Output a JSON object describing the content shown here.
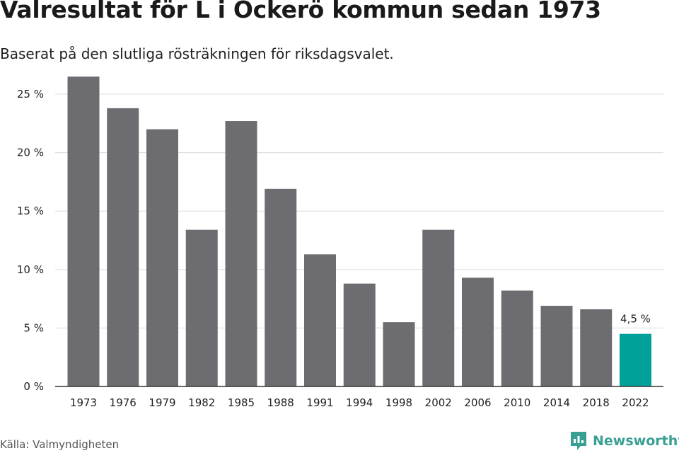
{
  "header": {
    "title": "Valresultat för L i Ockerö kommun sedan 1973",
    "subtitle": "Baserat på den slutliga rösträkningen för riksdagsvalet."
  },
  "footer": {
    "source": "Källa: Valmyndigheten",
    "brand": "Newsworthy",
    "brand_icon": "newsworthy-logo-icon",
    "brand_color": "#3a9f93"
  },
  "chart_data": {
    "type": "bar",
    "title": "Valresultat för L i Ockerö kommun sedan 1973",
    "subtitle": "Baserat på den slutliga rösträkningen för riksdagsvalet.",
    "xlabel": "",
    "ylabel": "",
    "categories": [
      "1973",
      "1976",
      "1979",
      "1982",
      "1985",
      "1988",
      "1991",
      "1994",
      "1998",
      "2002",
      "2006",
      "2010",
      "2014",
      "2018",
      "2022"
    ],
    "values": [
      26.5,
      23.8,
      22.0,
      13.4,
      22.7,
      16.9,
      11.3,
      8.8,
      5.5,
      13.4,
      9.3,
      8.2,
      6.9,
      6.6,
      4.5
    ],
    "ylim": [
      0,
      27
    ],
    "yticks": [
      0,
      5,
      10,
      15,
      20,
      25
    ],
    "ytick_labels": [
      "0 %",
      "5 %",
      "10 %",
      "15 %",
      "20 %",
      "25 %"
    ],
    "grid": true,
    "colors": {
      "default": "#6d6c71",
      "highlight": "#00a19a"
    },
    "highlight_index": 14,
    "data_labels": [
      {
        "index": 14,
        "text": "4,5 %"
      }
    ]
  }
}
